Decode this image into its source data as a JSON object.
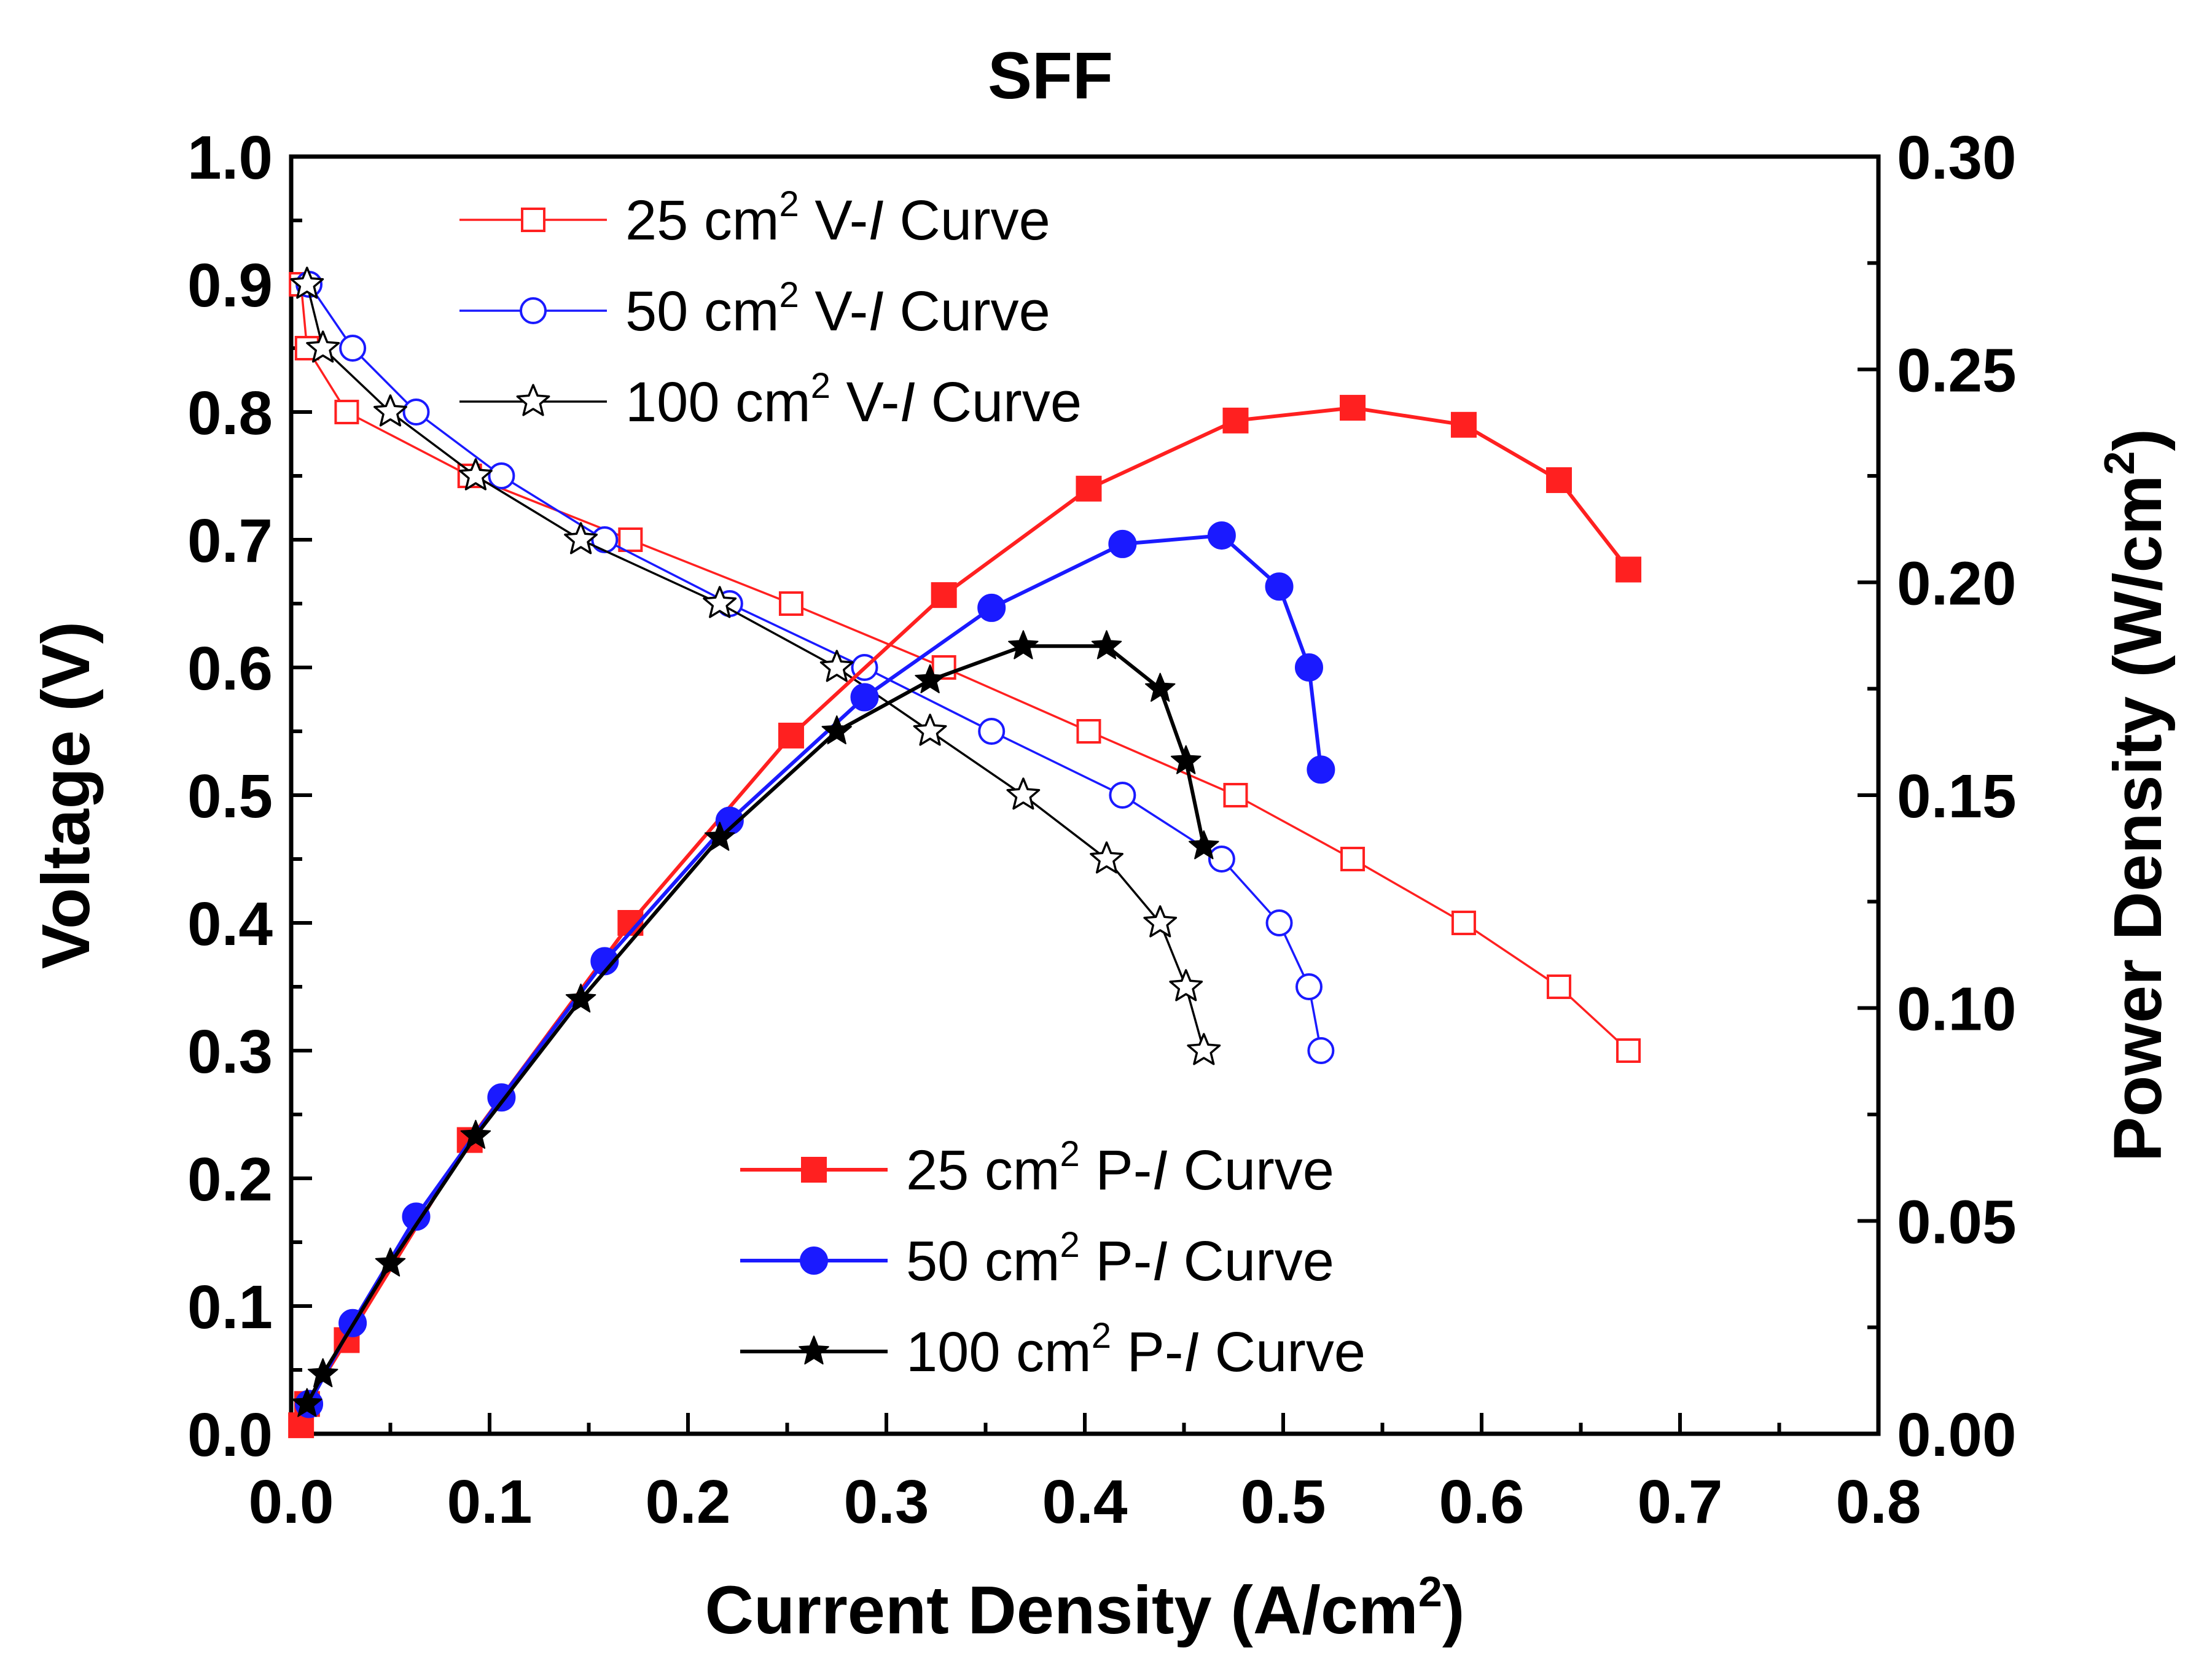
{
  "chart_data": {
    "type": "line",
    "title": "SFF",
    "xlabel": {
      "main": "Current Density (A/cm",
      "sup": "2",
      "tail": ")"
    },
    "ylabel": "Voltage (V)",
    "y2label": {
      "main": "Power Density (W/cm",
      "sup": "2",
      "tail": ")"
    },
    "xlim": [
      0,
      0.8
    ],
    "ylim": [
      0,
      1.0
    ],
    "y2lim": [
      0,
      0.3
    ],
    "x_ticks": [
      "0.0",
      "0.1",
      "0.2",
      "0.3",
      "0.4",
      "0.5",
      "0.6",
      "0.7",
      "0.8"
    ],
    "y_ticks": [
      "0.0",
      "0.1",
      "0.2",
      "0.3",
      "0.4",
      "0.5",
      "0.6",
      "0.7",
      "0.8",
      "0.9",
      "1.0"
    ],
    "y2_ticks": [
      "0.00",
      "0.05",
      "0.10",
      "0.15",
      "0.20",
      "0.25",
      "0.30"
    ],
    "grid": false,
    "legend_top_left": [
      {
        "series": "v25",
        "pre": "25 cm",
        "sup": "2",
        "mid": " V-",
        "italic": "I",
        "post": " Curve"
      },
      {
        "series": "v50",
        "pre": "50 cm",
        "sup": "2",
        "mid": " V-",
        "italic": "I",
        "post": " Curve"
      },
      {
        "series": "v100",
        "pre": "100 cm",
        "sup": "2",
        "mid": " V-",
        "italic": "I",
        "post": " Curve"
      }
    ],
    "legend_bottom_center": [
      {
        "series": "p25",
        "pre": "25 cm",
        "sup": "2",
        "mid": " P-",
        "italic": "I",
        "post": " Curve"
      },
      {
        "series": "p50",
        "pre": "50 cm",
        "sup": "2",
        "mid": " P-",
        "italic": "I",
        "post": " Curve"
      },
      {
        "series": "p100",
        "pre": "100 cm",
        "sup": "2",
        "mid": " P-",
        "italic": "I",
        "post": " Curve"
      }
    ],
    "series": [
      {
        "id": "v25",
        "name": "25 cm2 V-I Curve",
        "axis": "left",
        "color": "#ff2020",
        "marker": "square",
        "filled": false,
        "x": [
          0.005,
          0.008,
          0.028,
          0.09,
          0.171,
          0.252,
          0.329,
          0.402,
          0.476,
          0.535,
          0.591,
          0.639,
          0.674
        ],
        "y": [
          0.9,
          0.85,
          0.8,
          0.75,
          0.7,
          0.65,
          0.6,
          0.55,
          0.5,
          0.45,
          0.4,
          0.35,
          0.3
        ]
      },
      {
        "id": "v50",
        "name": "50 cm2 V-I Curve",
        "axis": "left",
        "color": "#1a1aff",
        "marker": "circle",
        "filled": false,
        "x": [
          0.009,
          0.031,
          0.063,
          0.106,
          0.158,
          0.221,
          0.289,
          0.353,
          0.419,
          0.469,
          0.498,
          0.513,
          0.519
        ],
        "y": [
          0.9,
          0.85,
          0.8,
          0.75,
          0.7,
          0.65,
          0.6,
          0.55,
          0.5,
          0.45,
          0.4,
          0.35,
          0.3
        ]
      },
      {
        "id": "v100",
        "name": "100 cm2 V-I Curve",
        "axis": "left",
        "color": "#000000",
        "marker": "star",
        "filled": false,
        "x": [
          0.008,
          0.016,
          0.05,
          0.093,
          0.146,
          0.216,
          0.275,
          0.322,
          0.369,
          0.411,
          0.438,
          0.451,
          0.46
        ],
        "y": [
          0.9,
          0.85,
          0.8,
          0.75,
          0.7,
          0.65,
          0.6,
          0.55,
          0.5,
          0.45,
          0.4,
          0.35,
          0.3
        ]
      },
      {
        "id": "p25",
        "name": "25 cm2 P-I Curve",
        "axis": "right",
        "color": "#ff2020",
        "marker": "square",
        "filled": true,
        "x": [
          0.005,
          0.008,
          0.028,
          0.09,
          0.171,
          0.252,
          0.329,
          0.402,
          0.476,
          0.535,
          0.591,
          0.639,
          0.674
        ],
        "y": [
          0.002,
          0.007,
          0.022,
          0.069,
          0.12,
          0.164,
          0.197,
          0.222,
          0.238,
          0.241,
          0.237,
          0.224,
          0.203
        ]
      },
      {
        "id": "p50",
        "name": "50 cm2 P-I Curve",
        "axis": "right",
        "color": "#1a1aff",
        "marker": "circle",
        "filled": true,
        "x": [
          0.009,
          0.031,
          0.063,
          0.106,
          0.158,
          0.221,
          0.289,
          0.353,
          0.419,
          0.469,
          0.498,
          0.513,
          0.519
        ],
        "y": [
          0.007,
          0.026,
          0.051,
          0.079,
          0.111,
          0.144,
          0.173,
          0.194,
          0.209,
          0.211,
          0.199,
          0.18,
          0.156
        ]
      },
      {
        "id": "p100",
        "name": "100 cm2 P-I Curve",
        "axis": "right",
        "color": "#000000",
        "marker": "star",
        "filled": true,
        "x": [
          0.008,
          0.016,
          0.05,
          0.093,
          0.146,
          0.216,
          0.275,
          0.322,
          0.369,
          0.411,
          0.438,
          0.451,
          0.46
        ],
        "y": [
          0.007,
          0.014,
          0.04,
          0.07,
          0.102,
          0.14,
          0.165,
          0.177,
          0.185,
          0.185,
          0.175,
          0.158,
          0.138
        ]
      }
    ]
  }
}
